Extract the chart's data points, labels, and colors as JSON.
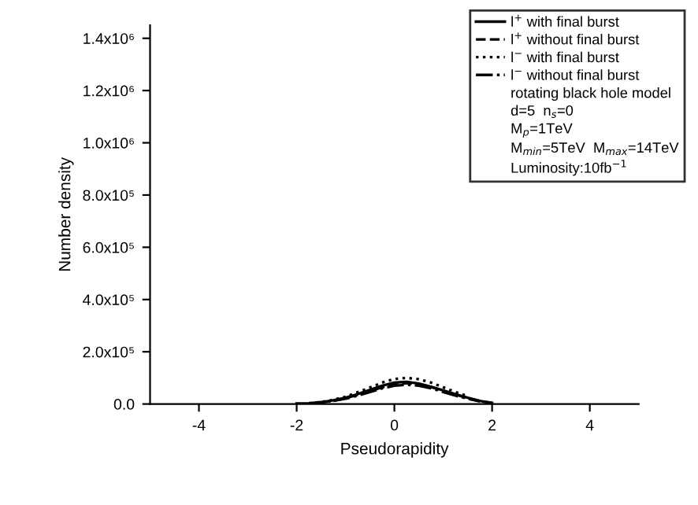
{
  "chart_data": {
    "type": "line",
    "xlabel": "Pseudorapidity",
    "ylabel": "Number density",
    "xlim": [
      -5,
      5
    ],
    "xticks": [
      -4,
      -2,
      0,
      2,
      4
    ],
    "ylim": [
      0,
      1450000
    ],
    "yticks": [
      {
        "value": 0,
        "label": "0.0"
      },
      {
        "value": 200000,
        "label": "2.0x10⁵"
      },
      {
        "value": 400000,
        "label": "4.0x10⁵"
      },
      {
        "value": 600000,
        "label": "6.0x10⁵"
      },
      {
        "value": 800000,
        "label": "8.0x10⁵"
      },
      {
        "value": 1000000,
        "label": "1.0x10⁶"
      },
      {
        "value": 1200000,
        "label": "1.2x10⁶"
      },
      {
        "value": 1400000,
        "label": "1.4x10⁶"
      }
    ],
    "x": [
      -2,
      -1.75,
      -1.5,
      -1.25,
      -1,
      -0.75,
      -0.5,
      -0.25,
      0,
      0.25,
      0.5,
      0.75,
      1,
      1.25,
      1.5,
      1.75,
      2
    ],
    "series": [
      {
        "name": "l$^{+}$ with final burst",
        "color": "#000000",
        "line_style": "solid",
        "values": [
          2000,
          3000,
          7000,
          14000,
          24000,
          38000,
          54000,
          70000,
          82000,
          85000,
          78000,
          66000,
          52000,
          38000,
          24000,
          12000,
          3000
        ]
      },
      {
        "name": "l$^{+}$ without final burst",
        "color": "#000000",
        "line_style": "dashed",
        "x": [
          -1.5,
          -1.25,
          -1,
          -0.75,
          -0.5,
          -0.25,
          0,
          0.25,
          0.5,
          0.75,
          1,
          1.25,
          1.5,
          1.75,
          2.1
        ],
        "values": [
          6000,
          12000,
          22000,
          35000,
          50000,
          64000,
          75000,
          80000,
          76000,
          65000,
          50000,
          36000,
          22000,
          11000,
          2000
        ]
      },
      {
        "name": "l$^{−}$ with final burst",
        "color": "#000000",
        "line_style": "dotted",
        "x": [
          -1.75,
          -1.5,
          -1.25,
          -1,
          -0.75,
          -0.5,
          -0.25,
          0,
          0.25,
          0.5,
          0.75,
          1,
          1.25,
          1.5
        ],
        "values": [
          3000,
          8000,
          16000,
          28000,
          45000,
          63000,
          82000,
          96000,
          100000,
          95000,
          82000,
          64000,
          46000,
          30000
        ]
      },
      {
        "name": "l$^{−}$ without final burst",
        "color": "#000000",
        "line_style": "dashdot",
        "x": [
          -1.25,
          -1,
          -0.75,
          -0.5,
          -0.25,
          0,
          0.25,
          0.5,
          0.75,
          1,
          1.25,
          1.5,
          1.75
        ],
        "values": [
          12000,
          20000,
          32000,
          46000,
          60000,
          70000,
          74000,
          70000,
          60000,
          46000,
          32000,
          20000,
          10000
        ]
      }
    ],
    "annotations": [
      "rotating black hole model",
      "d=5  n$_{s}$=0",
      "M$_{p}$=1TeV",
      "M$_{min}$=5TeV  M$_{max}$=14TeV",
      "Luminosity:10fb$^{−1}$"
    ],
    "legend": "top right",
    "grid": false
  }
}
